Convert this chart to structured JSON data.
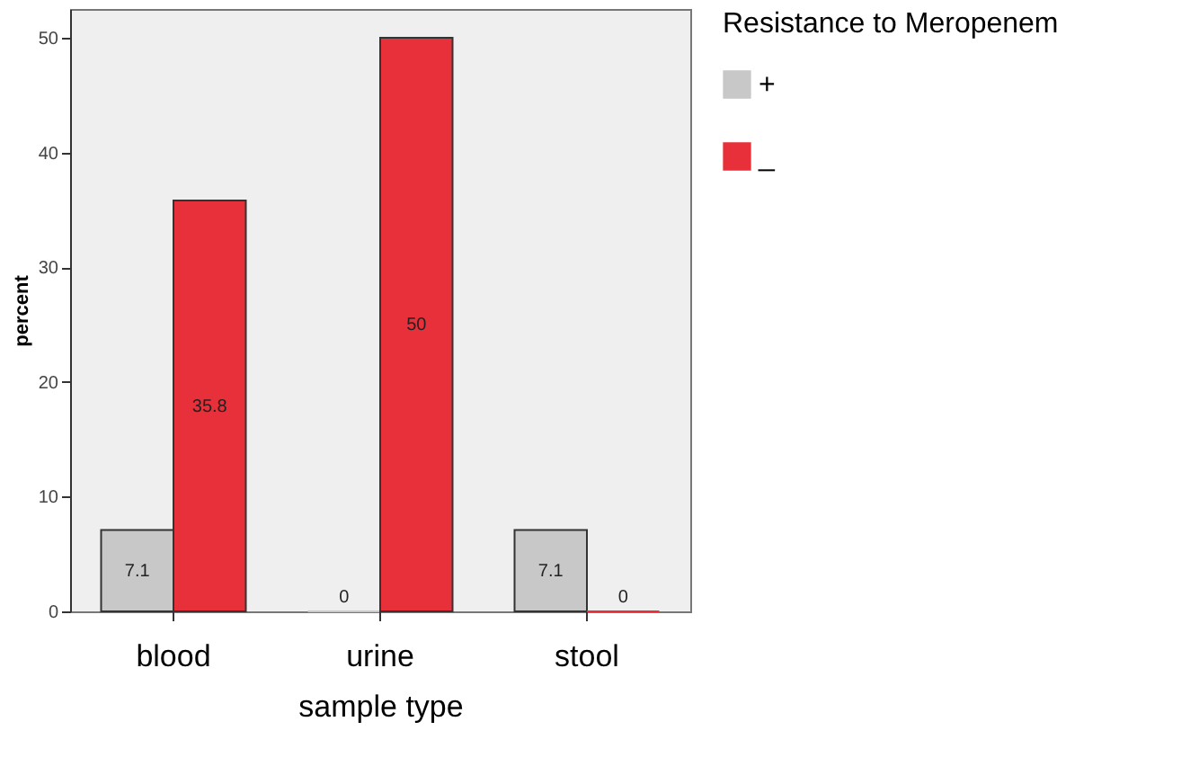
{
  "chart_data": {
    "type": "bar",
    "xlabel": "sample type",
    "ylabel": "percent",
    "legend_title": "Resistance to Meropenem",
    "categories": [
      "blood",
      "urine",
      "stool"
    ],
    "series": [
      {
        "name": "+",
        "color": "#c8c8c8",
        "values": [
          7.1,
          0,
          7.1
        ]
      },
      {
        "name": "_",
        "color": "#e8303a",
        "values": [
          35.8,
          50,
          0
        ]
      }
    ],
    "ylim": [
      0,
      52.5
    ],
    "yticks": [
      0,
      10,
      20,
      30,
      40,
      50
    ],
    "grid": false,
    "legend": "right",
    "data_labels": true
  }
}
